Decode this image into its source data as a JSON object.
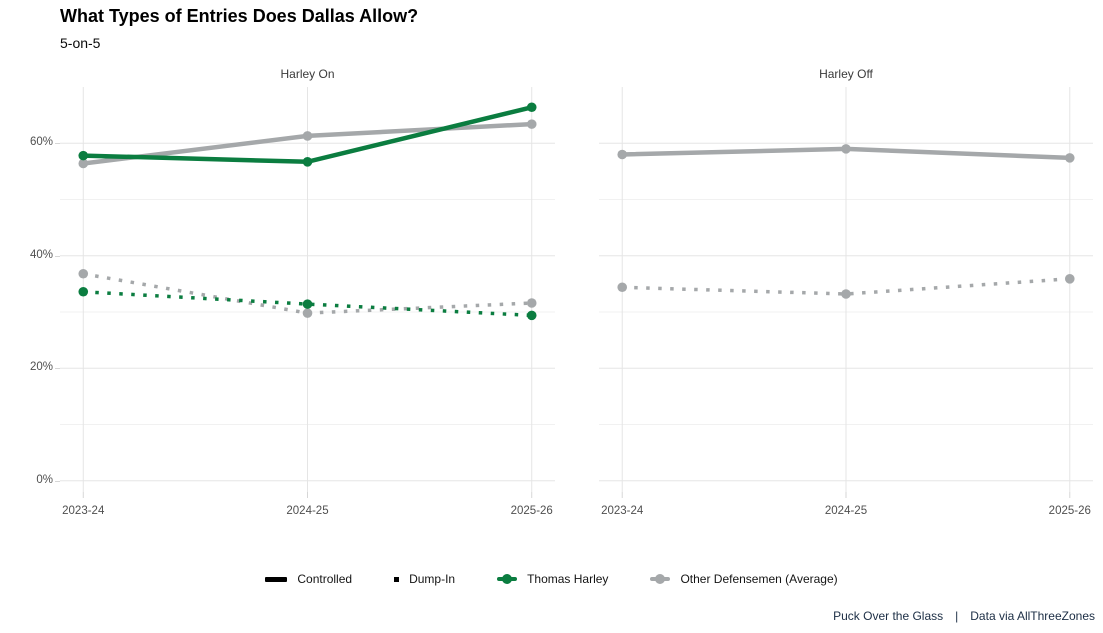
{
  "title": "What Types of Entries Does Dallas Allow?",
  "subtitle": "5-on-5",
  "footer": {
    "source": "Puck Over the Glass",
    "separator": "|",
    "credit": "Data via AllThreeZones"
  },
  "colors": {
    "thomas_harley_green": "#0b7d40",
    "other_defensemen_gray": "#a5a8aa",
    "legend_black": "#000000",
    "axis_text": "#4f4f4f",
    "gridline_major": "#e5e5e5",
    "gridline_minor": "#f1f1f1"
  },
  "legend": {
    "items": [
      {
        "label": "Controlled",
        "key": "solid-line",
        "color": "#000000"
      },
      {
        "label": "Dump-In",
        "key": "dash-square",
        "color": "#000000"
      },
      {
        "label": "Thomas Harley",
        "key": "line-dot",
        "color": "#0b7d40"
      },
      {
        "label": "Other Defensemen (Average)",
        "key": "line-dot",
        "color": "#a5a8aa"
      }
    ]
  },
  "chart_data": {
    "type": "line",
    "x": [
      "2023-24",
      "2024-25",
      "2025-26"
    ],
    "ylim": [
      -2,
      70
    ],
    "yticks_major": [
      0,
      20,
      40,
      60
    ],
    "yticks_minor": [
      10,
      30,
      50
    ],
    "ytick_format": "percent",
    "grid": "major+minor horizontal, major vertical at seasons",
    "legend_position": "bottom center",
    "panels": [
      {
        "title": "Harley On",
        "series": [
          {
            "name": "Other Defensemen (Average) - Dump-In",
            "player": "Other Defensemen (Average)",
            "entry_type": "Dump-In",
            "color": "#a5a8aa",
            "dash": true,
            "values": [
              36.8,
              29.8,
              31.6
            ]
          },
          {
            "name": "Thomas Harley - Dump-In",
            "player": "Thomas Harley",
            "entry_type": "Dump-In",
            "color": "#0b7d40",
            "dash": true,
            "values": [
              33.6,
              31.4,
              29.4
            ]
          },
          {
            "name": "Other Defensemen (Average) - Controlled",
            "player": "Other Defensemen (Average)",
            "entry_type": "Controlled",
            "color": "#a5a8aa",
            "dash": false,
            "values": [
              56.4,
              61.3,
              63.4
            ]
          },
          {
            "name": "Thomas Harley - Controlled",
            "player": "Thomas Harley",
            "entry_type": "Controlled",
            "color": "#0b7d40",
            "dash": false,
            "values": [
              57.8,
              56.7,
              66.4
            ]
          }
        ]
      },
      {
        "title": "Harley Off",
        "series": [
          {
            "name": "Other Defensemen (Average) - Dump-In",
            "player": "Other Defensemen (Average)",
            "entry_type": "Dump-In",
            "color": "#a5a8aa",
            "dash": true,
            "values": [
              34.4,
              33.2,
              35.9
            ]
          },
          {
            "name": "Other Defensemen (Average) - Controlled",
            "player": "Other Defensemen (Average)",
            "entry_type": "Controlled",
            "color": "#a5a8aa",
            "dash": false,
            "values": [
              58.0,
              59.0,
              57.4
            ]
          }
        ]
      }
    ]
  }
}
